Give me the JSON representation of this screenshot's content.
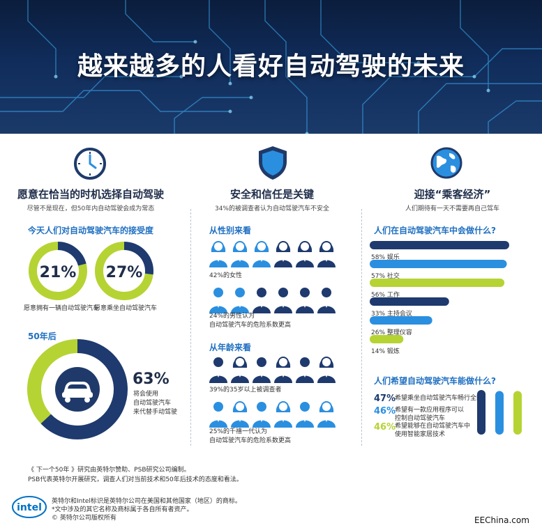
{
  "hero": {
    "title": "越来越多的人看好自动驾驶的未来"
  },
  "columns": [
    {
      "icon": "clock-icon",
      "title": "愿意在恰当的时机选择自动驾驶",
      "subtitle": "尽管不是现在，但50年内自动驾驶会成为常态"
    },
    {
      "icon": "shield-icon",
      "title": "安全和信任是关键",
      "subtitle": "34%的被调查者认为自动驾驶汽车不安全"
    },
    {
      "icon": "globe-icon",
      "title": "迎接“乘客经济”",
      "subtitle": "人们期待有一天不需要再自己驾车"
    }
  ],
  "acceptance": {
    "title": "今天人们对自动驾驶汽车的接受度",
    "donuts": [
      {
        "value": 21,
        "label": "21%",
        "caption": "愿意拥有一辆自动驾驶汽车"
      },
      {
        "value": 27,
        "label": "27%",
        "caption": "愿意乘坐自动驾驶汽车"
      }
    ]
  },
  "future": {
    "title": "50年后",
    "value": 63,
    "label": "63%",
    "caption": [
      "将会使用",
      "自动驾驶汽车",
      "来代替手动驾驶"
    ]
  },
  "gender": {
    "title": "从性别来看",
    "women_caption": "42%的女性",
    "men_caption": [
      "24%的男性认为",
      "自动驾驶汽车的危险系数更高"
    ]
  },
  "age": {
    "title": "从年龄来看",
    "older_caption": "39%的35岁以上被调查者",
    "younger_caption": [
      "25%的千禧一代认为",
      "自动驾驶汽车的危险系数更高"
    ]
  },
  "activities": {
    "title": "人们在自动驾驶汽车中会做什么?",
    "items": [
      {
        "value": 58,
        "label": "58% 娱乐",
        "color": "#1e3a6e"
      },
      {
        "value": 57,
        "label": "57% 社交",
        "color": "#2b8fe0"
      },
      {
        "value": 56,
        "label": "56% 工作",
        "color": "#b6d334"
      },
      {
        "value": 33,
        "label": "33% 主持会议",
        "color": "#1e3a6e"
      },
      {
        "value": 26,
        "label": "26% 整理仪容",
        "color": "#2b8fe0"
      },
      {
        "value": 14,
        "label": "14% 锻炼",
        "color": "#b6d334"
      }
    ]
  },
  "hopes": {
    "title": "人们希望自动驾驶汽车能做什么?",
    "items": [
      {
        "value": 47,
        "label": "47%",
        "text": [
          "希望乘坐自动驾驶汽车畅行全国"
        ],
        "color": "#1e3a6e"
      },
      {
        "value": 46,
        "label": "46%",
        "text": [
          "希望有一款应用程序可以",
          "控制自动驾驶汽车"
        ],
        "color": "#2b8fe0"
      },
      {
        "value": 46,
        "label": "46%",
        "text": [
          "希望能够在自动驾驶汽车中",
          "使用智能家居技术"
        ],
        "color": "#b6d334"
      }
    ]
  },
  "chart_data": [
    {
      "type": "pie",
      "title": "今天人们对自动驾驶汽车的接受度",
      "categories": [
        "愿意拥有一辆自动驾驶汽车"
      ],
      "values": [
        21
      ]
    },
    {
      "type": "pie",
      "title": "今天人们对自动驾驶汽车的接受度",
      "categories": [
        "愿意乘坐自动驾驶汽车"
      ],
      "values": [
        27
      ]
    },
    {
      "type": "pie",
      "title": "50年后",
      "categories": [
        "将会使用自动驾驶汽车来代替手动驾驶"
      ],
      "values": [
        63
      ]
    },
    {
      "type": "bar",
      "title": "人们在自动驾驶汽车中会做什么?",
      "categories": [
        "娱乐",
        "社交",
        "工作",
        "主持会议",
        "整理仪容",
        "锻炼"
      ],
      "values": [
        58,
        57,
        56,
        33,
        26,
        14
      ]
    },
    {
      "type": "bar",
      "title": "人们希望自动驾驶汽车能做什么?",
      "categories": [
        "希望乘坐自动驾驶汽车畅行全国",
        "希望有一款应用程序可以控制自动驾驶汽车",
        "希望能够在自动驾驶汽车中使用智能家居技术"
      ],
      "values": [
        47,
        46,
        46
      ]
    }
  ],
  "footer": {
    "lines": [
      "《 下一个50年 》研究由英特尔赞助、PSB研究公司编制。",
      "PSB代表英特尔开展研究，调查人们对当前技术和50年后技术的态度和看法。"
    ],
    "logo": "intel",
    "legal": [
      "英特尔和Intel标识是英特尔公司在美国和其他国家（地区）的商标。",
      "*文中涉及的其它名称及商标属于各自所有者资产。",
      "© 英特尔公司版权所有"
    ],
    "watermark": "EEChina.com"
  }
}
